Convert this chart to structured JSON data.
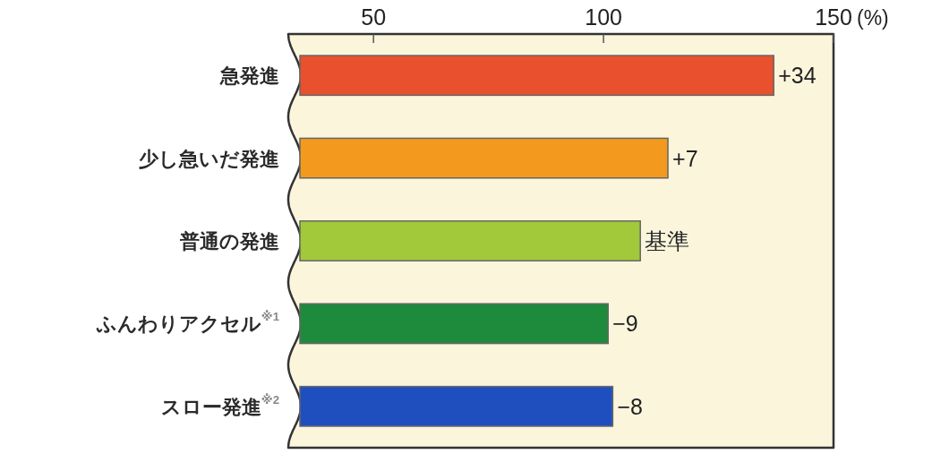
{
  "chart_data": {
    "type": "bar",
    "orientation": "horizontal",
    "categories": [
      "急発進",
      "少し急いだ発進",
      "普通の発進",
      "ふんわりアクセル$^{※1}$",
      "スロー発進$^{※2}$"
    ],
    "values": [
      137,
      114,
      108,
      101,
      102
    ],
    "colors": [
      "#e9502e",
      "#f39a1e",
      "#a2c93a",
      "#1e8a3c",
      "#1f4fbf"
    ],
    "annotations": [
      {
        "text": "+34",
        "x": 137,
        "y": "急発進"
      },
      {
        "text": "+7",
        "x": 114,
        "y": "少し急いだ発進"
      },
      {
        "text": "基準",
        "x": 108,
        "y": "普通の発進"
      },
      {
        "text": "−9",
        "x": 101,
        "y": "ふんわりアクセル$^{※1}$"
      },
      {
        "text": "−8",
        "x": 102,
        "y": "スロー発進$^{※2}$"
      }
    ],
    "xlim": [
      34,
      150
    ],
    "xticks": [
      50,
      100,
      150
    ],
    "xlabel": "(%)"
  }
}
